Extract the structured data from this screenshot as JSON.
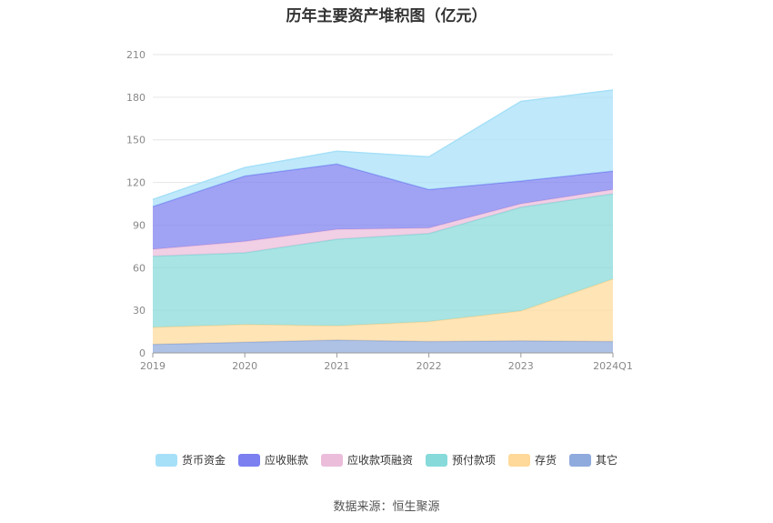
{
  "title": "历年主要资产堆积图（亿元）",
  "source": "数据来源：恒生聚源",
  "chart_data": {
    "type": "area",
    "stacked": true,
    "title": "历年主要资产堆积图（亿元）",
    "categories": [
      "2019",
      "2020",
      "2021",
      "2022",
      "2023",
      "2024Q1"
    ],
    "ylim": [
      0,
      210
    ],
    "yticks": [
      0,
      30,
      60,
      90,
      120,
      150,
      180,
      210
    ],
    "grid": true,
    "legend_position": "bottom",
    "series": [
      {
        "name": "其它",
        "color": "#8faadc",
        "values": [
          6,
          7.5,
          9,
          8,
          8.5,
          8
        ]
      },
      {
        "name": "存货",
        "color": "#ffd99a",
        "values": [
          12,
          12.5,
          10,
          14,
          21,
          44
        ]
      },
      {
        "name": "预付款项",
        "color": "#86dada",
        "values": [
          50,
          50.5,
          61,
          62,
          73,
          60
        ]
      },
      {
        "name": "应收款项融资",
        "color": "#ebbddb",
        "values": [
          5,
          8,
          7,
          4,
          2.5,
          3
        ]
      },
      {
        "name": "应收账款",
        "color": "#7b7ff0",
        "values": [
          30,
          46,
          46,
          27,
          16,
          13
        ]
      },
      {
        "name": "货币资金",
        "color": "#a6e0f8",
        "values": [
          5,
          6,
          9,
          23,
          56,
          57
        ]
      }
    ]
  }
}
